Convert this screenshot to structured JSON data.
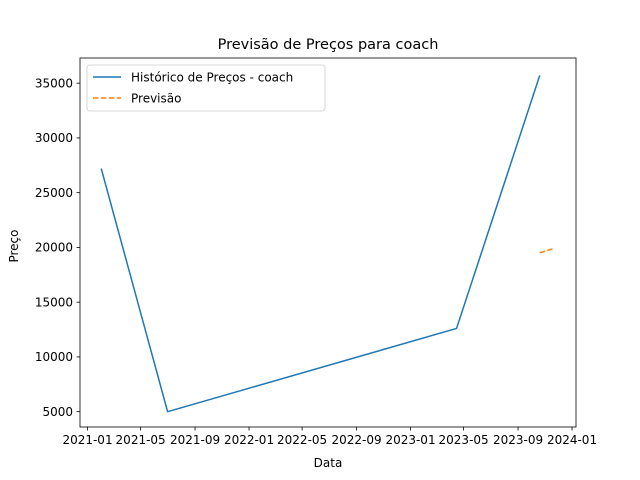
{
  "chart_data": {
    "type": "line",
    "title": "Previsão de Preços para coach",
    "xlabel": "Data",
    "ylabel": "Preço",
    "xlim": [
      "2020-12-15",
      "2024-01-10"
    ],
    "ylim": [
      3600,
      37300
    ],
    "x_ticks": [
      "2021-01-01",
      "2021-05-01",
      "2021-09-01",
      "2022-01-01",
      "2022-05-01",
      "2022-09-01",
      "2023-01-01",
      "2023-05-01",
      "2023-09-01",
      "2024-01-01"
    ],
    "x_tick_labels": [
      "2021-01",
      "2021-05",
      "2021-09",
      "2022-01",
      "2022-05",
      "2022-09",
      "2023-01",
      "2023-05",
      "2023-09",
      "2024-01"
    ],
    "y_ticks": [
      5000,
      10000,
      15000,
      20000,
      25000,
      30000,
      35000
    ],
    "y_tick_labels": [
      "5000",
      "10000",
      "15000",
      "20000",
      "25000",
      "30000",
      "35000"
    ],
    "grid": false,
    "legend_position": "top-left",
    "series": [
      {
        "name": "Histórico de Preços - coach",
        "style": "solid",
        "color": "#1f77b4",
        "x": [
          "2021-02-01",
          "2021-07-01",
          "2023-04-15",
          "2023-10-20"
        ],
        "y": [
          27200,
          5000,
          12600,
          35700
        ]
      },
      {
        "name": "Previsão",
        "style": "dashed",
        "color": "#ff7f0e",
        "x": [
          "2023-10-20",
          "2023-11-20"
        ],
        "y": [
          19500,
          19900
        ]
      }
    ]
  }
}
